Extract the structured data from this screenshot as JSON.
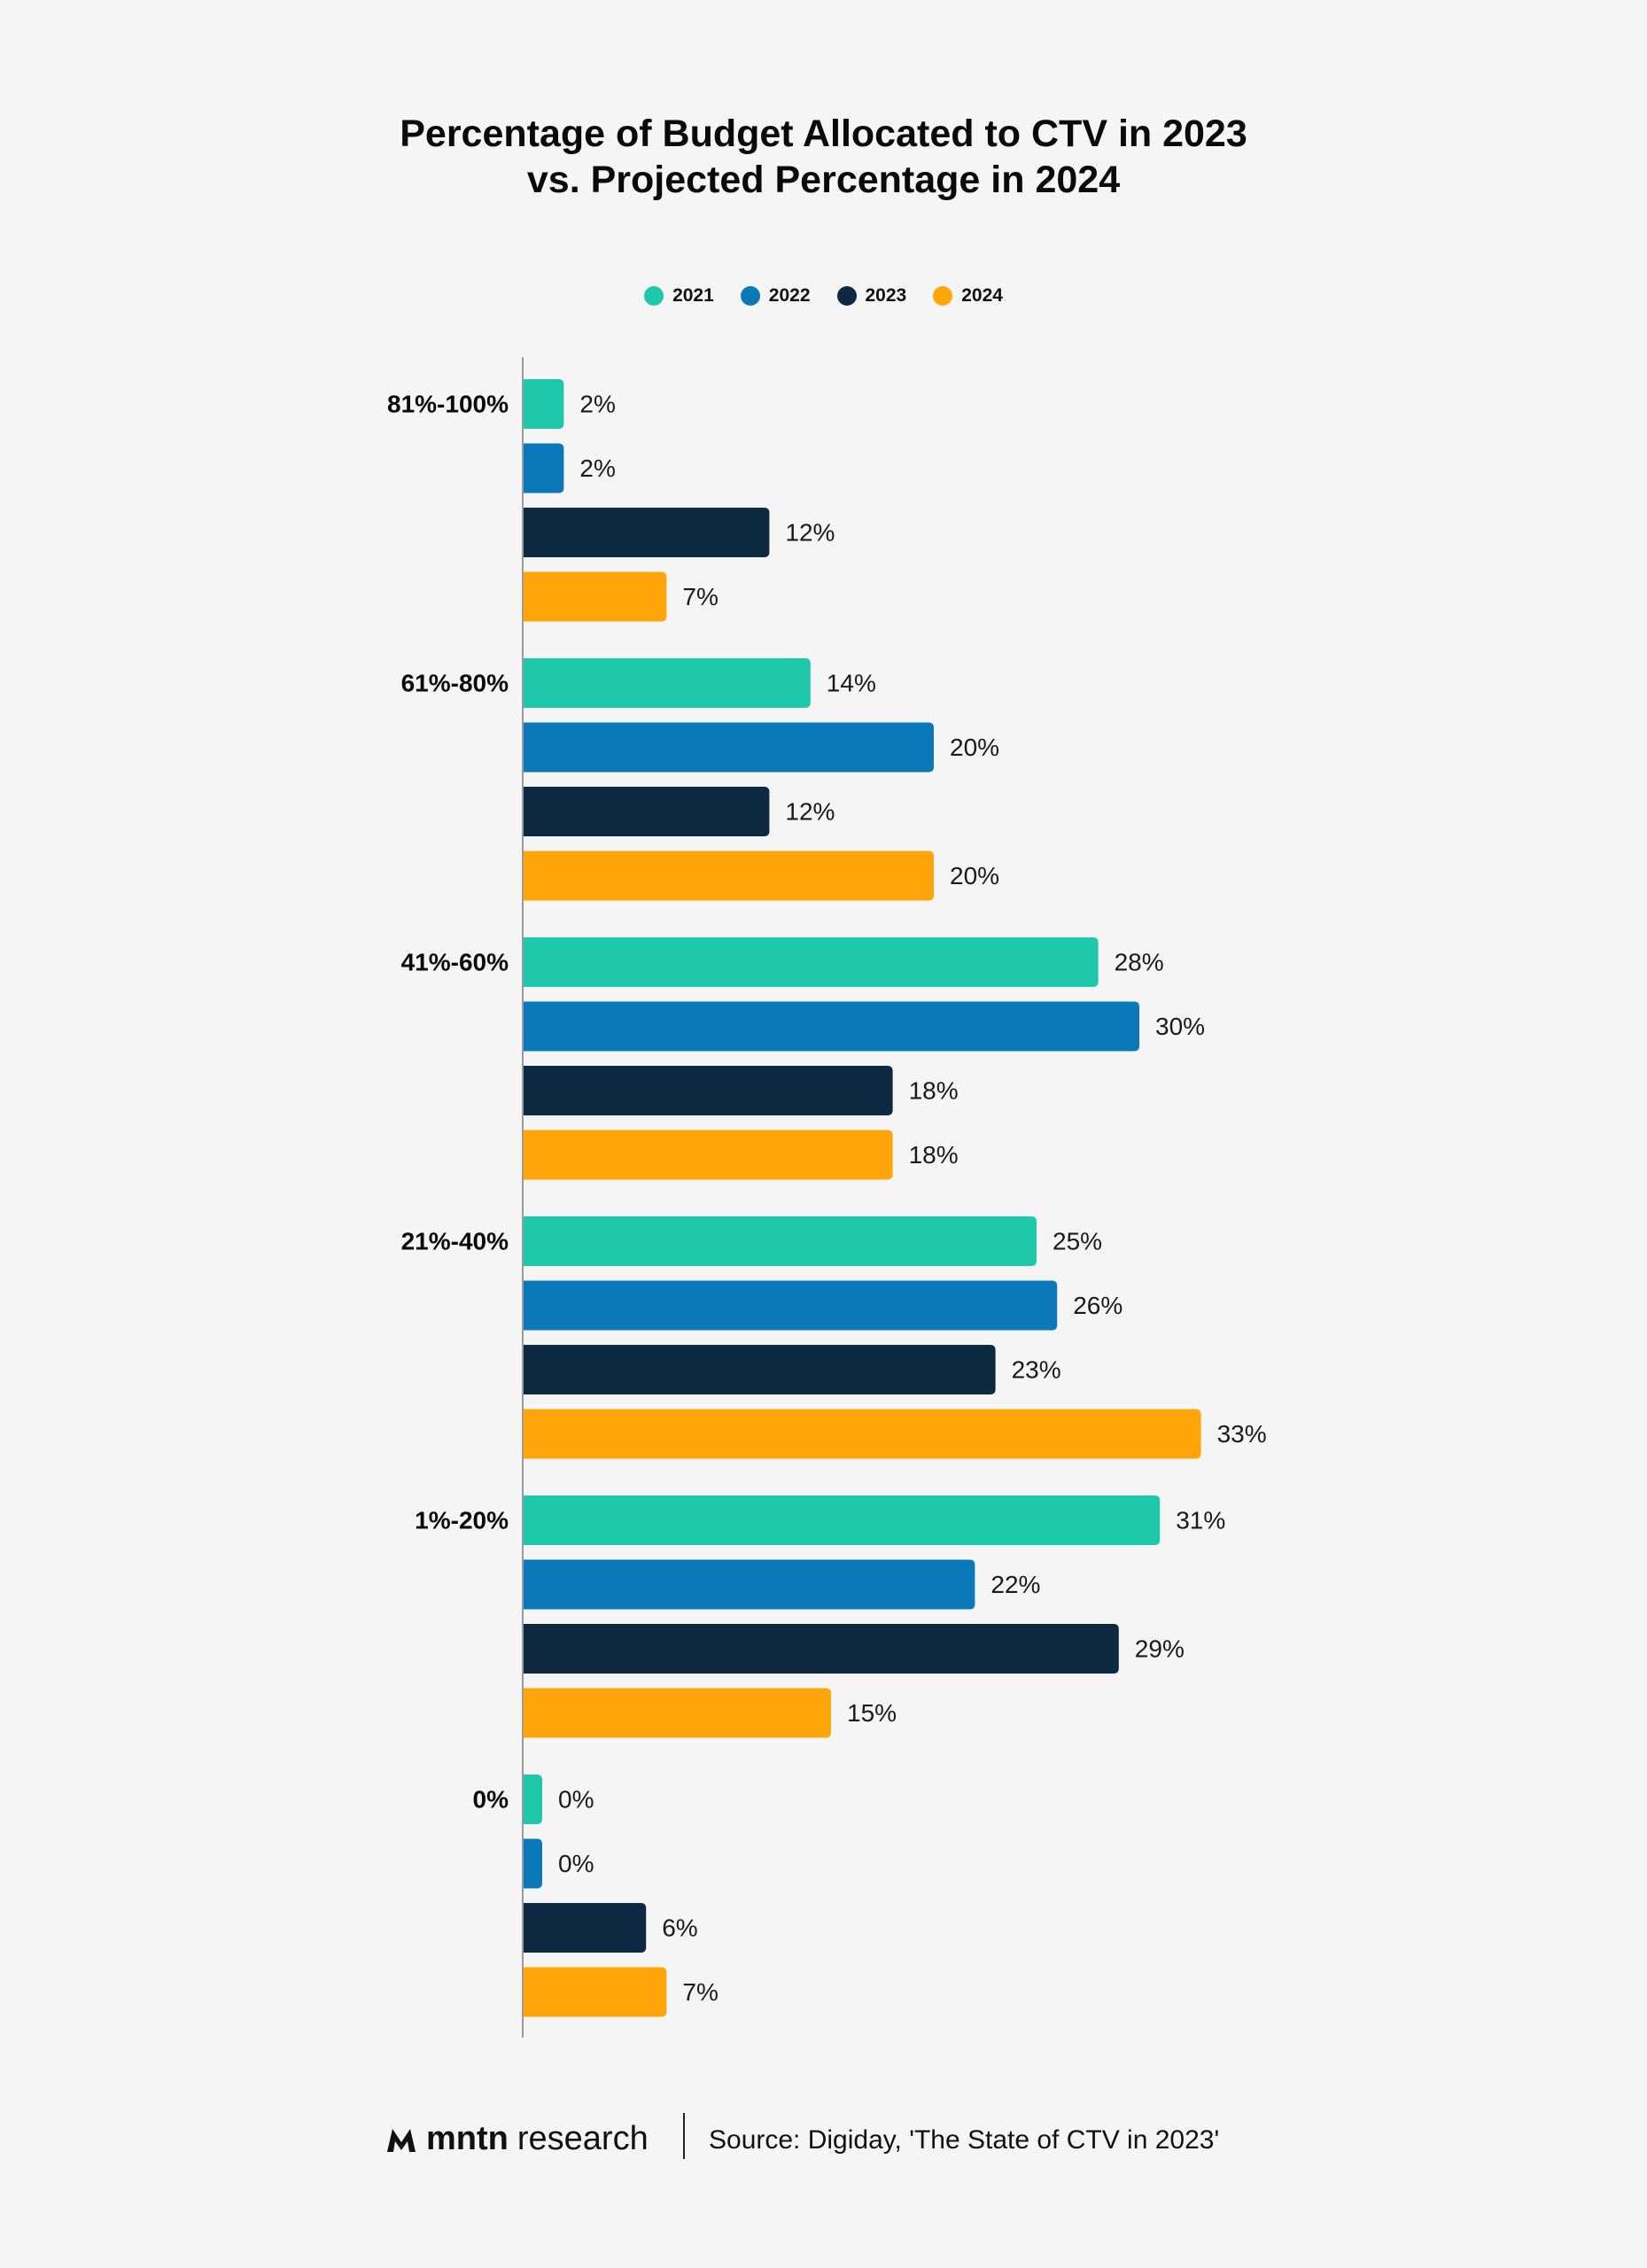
{
  "colors": {
    "2021": "#1ec8aa",
    "2022": "#0a78b9",
    "2023": "#0e2a42",
    "2024": "#ffa50a",
    "background": "#f5f5f5",
    "axis": "#9a9a9a"
  },
  "footer": {
    "brand_bold": "mntn",
    "brand_light": "research",
    "brand_icon": "mntn-logo-icon",
    "source": "Source: Digiday, 'The State of CTV in 2023'"
  },
  "chart_data": {
    "type": "bar",
    "orientation": "horizontal",
    "title_line1": "Percentage of Budget Allocated to CTV in 2023",
    "title_line2": "vs. Projected Percentage in 2024",
    "categories": [
      "81%-100%",
      "61%-80%",
      "41%-60%",
      "21%-40%",
      "1%-20%",
      "0%"
    ],
    "series": [
      {
        "name": "2021",
        "values": [
          2,
          14,
          28,
          25,
          31,
          0
        ]
      },
      {
        "name": "2022",
        "values": [
          2,
          20,
          30,
          26,
          22,
          0
        ]
      },
      {
        "name": "2023",
        "values": [
          12,
          12,
          18,
          23,
          29,
          6
        ]
      },
      {
        "name": "2024",
        "values": [
          7,
          20,
          18,
          33,
          15,
          7
        ]
      }
    ],
    "value_suffix": "%",
    "legend_position": "top-center",
    "grid": false,
    "xlim": [
      0,
      35
    ]
  }
}
